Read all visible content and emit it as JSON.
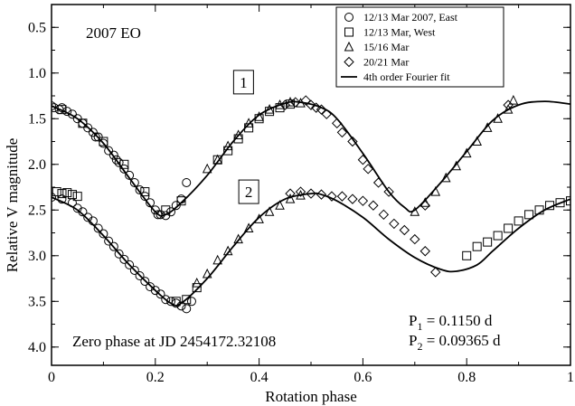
{
  "chart_data": {
    "type": "scatter",
    "title": "2007 EO",
    "xlabel": "Rotation phase",
    "ylabel": "Relative V magnitude",
    "xlim": [
      0,
      1
    ],
    "ylim": [
      4.2,
      0.25
    ],
    "y_inverted": true,
    "x_ticks": [
      0,
      0.2,
      0.4,
      0.6,
      0.8,
      1
    ],
    "x_tick_labels": [
      "0",
      "0.2",
      "0.4",
      "0.6",
      "0.8",
      "1"
    ],
    "y_ticks": [
      0.5,
      1.0,
      1.5,
      2.0,
      2.5,
      3.0,
      3.5,
      4.0
    ],
    "y_tick_labels": [
      "0.5",
      "1.0",
      "1.5",
      "2.0",
      "2.5",
      "3.0",
      "3.5",
      "4.0"
    ],
    "grid": false,
    "legend_position": "top-right",
    "legend": [
      {
        "label": "12/13 Mar 2007, East",
        "marker": "circle"
      },
      {
        "label": "12/13 Mar, West",
        "marker": "square"
      },
      {
        "label": "15/16 Mar",
        "marker": "triangle"
      },
      {
        "label": "20/21 Mar",
        "marker": "diamond"
      },
      {
        "label": "4th order Fourier fit",
        "marker": "line"
      }
    ],
    "panel_labels": [
      {
        "text": "1",
        "x": 0.37,
        "y": 1.1
      },
      {
        "text": "2",
        "x": 0.38,
        "y": 2.3
      }
    ],
    "annotations": {
      "zero_phase": "Zero phase at JD  2454172.32108",
      "p1_sym": "P",
      "p1_sub": "1",
      "p1_val": " = 0.1150 d",
      "p2_sym": "P",
      "p2_sub": "2",
      "p2_val": " = 0.09365 d"
    },
    "series": [
      {
        "label_ref": "1",
        "fit": [
          [
            0,
            1.36
          ],
          [
            0.05,
            1.5
          ],
          [
            0.1,
            1.77
          ],
          [
            0.15,
            2.15
          ],
          [
            0.2,
            2.52
          ],
          [
            0.22,
            2.55
          ],
          [
            0.25,
            2.42
          ],
          [
            0.3,
            2.12
          ],
          [
            0.35,
            1.75
          ],
          [
            0.4,
            1.46
          ],
          [
            0.45,
            1.33
          ],
          [
            0.48,
            1.32
          ],
          [
            0.52,
            1.38
          ],
          [
            0.55,
            1.5
          ],
          [
            0.6,
            1.88
          ],
          [
            0.65,
            2.3
          ],
          [
            0.68,
            2.47
          ],
          [
            0.7,
            2.5
          ],
          [
            0.75,
            2.2
          ],
          [
            0.8,
            1.86
          ],
          [
            0.85,
            1.52
          ],
          [
            0.9,
            1.35
          ],
          [
            0.95,
            1.31
          ],
          [
            1.0,
            1.34
          ]
        ],
        "points": {
          "circle": [
            [
              0.0,
              1.36
            ],
            [
              0.02,
              1.38
            ],
            [
              0.03,
              1.42
            ],
            [
              0.04,
              1.45
            ],
            [
              0.05,
              1.5
            ],
            [
              0.06,
              1.55
            ],
            [
              0.07,
              1.6
            ],
            [
              0.08,
              1.65
            ],
            [
              0.09,
              1.7
            ],
            [
              0.1,
              1.77
            ],
            [
              0.11,
              1.85
            ],
            [
              0.12,
              1.9
            ],
            [
              0.13,
              1.98
            ],
            [
              0.14,
              2.05
            ],
            [
              0.15,
              2.12
            ],
            [
              0.16,
              2.2
            ],
            [
              0.17,
              2.28
            ],
            [
              0.18,
              2.35
            ],
            [
              0.19,
              2.42
            ],
            [
              0.2,
              2.5
            ],
            [
              0.21,
              2.55
            ],
            [
              0.22,
              2.56
            ],
            [
              0.23,
              2.52
            ],
            [
              0.24,
              2.45
            ],
            [
              0.25,
              2.38
            ],
            [
              0.26,
              2.2
            ],
            [
              0.005,
              1.38
            ],
            [
              0.015,
              1.4
            ],
            [
              0.085,
              1.7
            ],
            [
              0.125,
              1.95
            ],
            [
              0.205,
              2.55
            ]
          ],
          "square": [
            [
              0.02,
              1.4
            ],
            [
              0.06,
              1.55
            ],
            [
              0.1,
              1.75
            ],
            [
              0.14,
              2.0
            ],
            [
              0.18,
              2.3
            ],
            [
              0.22,
              2.5
            ],
            [
              0.25,
              2.4
            ],
            [
              0.32,
              1.95
            ],
            [
              0.34,
              1.85
            ],
            [
              0.36,
              1.72
            ],
            [
              0.38,
              1.6
            ],
            [
              0.4,
              1.5
            ],
            [
              0.42,
              1.42
            ],
            [
              0.44,
              1.38
            ],
            [
              0.46,
              1.34
            ]
          ],
          "triangle": [
            [
              0.3,
              2.05
            ],
            [
              0.32,
              1.95
            ],
            [
              0.34,
              1.8
            ],
            [
              0.36,
              1.68
            ],
            [
              0.38,
              1.55
            ],
            [
              0.4,
              1.48
            ],
            [
              0.42,
              1.4
            ],
            [
              0.44,
              1.35
            ],
            [
              0.46,
              1.32
            ],
            [
              0.48,
              1.33
            ],
            [
              0.7,
              2.52
            ],
            [
              0.72,
              2.42
            ],
            [
              0.74,
              2.3
            ],
            [
              0.76,
              2.15
            ],
            [
              0.78,
              2.02
            ],
            [
              0.8,
              1.88
            ],
            [
              0.82,
              1.75
            ],
            [
              0.84,
              1.6
            ],
            [
              0.86,
              1.5
            ],
            [
              0.88,
              1.4
            ],
            [
              0.89,
              1.3
            ]
          ],
          "diamond": [
            [
              0.45,
              1.35
            ],
            [
              0.47,
              1.32
            ],
            [
              0.49,
              1.3
            ],
            [
              0.5,
              1.35
            ],
            [
              0.51,
              1.38
            ],
            [
              0.52,
              1.4
            ],
            [
              0.53,
              1.45
            ],
            [
              0.55,
              1.55
            ],
            [
              0.56,
              1.65
            ],
            [
              0.58,
              1.75
            ],
            [
              0.6,
              1.95
            ],
            [
              0.61,
              2.05
            ],
            [
              0.63,
              2.2
            ],
            [
              0.65,
              2.3
            ],
            [
              0.72,
              2.45
            ],
            [
              0.88,
              1.35
            ]
          ]
        }
      },
      {
        "label_ref": "2",
        "fit": [
          [
            0,
            2.36
          ],
          [
            0.05,
            2.5
          ],
          [
            0.1,
            2.78
          ],
          [
            0.15,
            3.1
          ],
          [
            0.2,
            3.38
          ],
          [
            0.23,
            3.52
          ],
          [
            0.25,
            3.52
          ],
          [
            0.3,
            3.25
          ],
          [
            0.35,
            2.9
          ],
          [
            0.4,
            2.58
          ],
          [
            0.45,
            2.38
          ],
          [
            0.5,
            2.32
          ],
          [
            0.52,
            2.33
          ],
          [
            0.55,
            2.4
          ],
          [
            0.6,
            2.58
          ],
          [
            0.65,
            2.82
          ],
          [
            0.7,
            3.02
          ],
          [
            0.75,
            3.15
          ],
          [
            0.78,
            3.17
          ],
          [
            0.82,
            3.1
          ],
          [
            0.85,
            2.95
          ],
          [
            0.9,
            2.7
          ],
          [
            0.95,
            2.5
          ],
          [
            1.0,
            2.38
          ]
        ],
        "points": {
          "circle": [
            [
              0.0,
              2.36
            ],
            [
              0.02,
              2.38
            ],
            [
              0.04,
              2.42
            ],
            [
              0.05,
              2.48
            ],
            [
              0.06,
              2.52
            ],
            [
              0.07,
              2.58
            ],
            [
              0.08,
              2.62
            ],
            [
              0.09,
              2.7
            ],
            [
              0.1,
              2.76
            ],
            [
              0.11,
              2.84
            ],
            [
              0.12,
              2.9
            ],
            [
              0.13,
              2.98
            ],
            [
              0.14,
              3.04
            ],
            [
              0.15,
              3.1
            ],
            [
              0.16,
              3.16
            ],
            [
              0.17,
              3.22
            ],
            [
              0.18,
              3.28
            ],
            [
              0.19,
              3.34
            ],
            [
              0.2,
              3.38
            ],
            [
              0.21,
              3.42
            ],
            [
              0.22,
              3.48
            ],
            [
              0.23,
              3.5
            ],
            [
              0.24,
              3.52
            ],
            [
              0.25,
              3.55
            ],
            [
              0.26,
              3.58
            ],
            [
              0.27,
              3.5
            ]
          ],
          "square": [
            [
              0.01,
              2.3
            ],
            [
              0.02,
              2.32
            ],
            [
              0.03,
              2.31
            ],
            [
              0.04,
              2.33
            ],
            [
              0.05,
              2.35
            ],
            [
              0.24,
              3.5
            ],
            [
              0.26,
              3.48
            ],
            [
              0.28,
              3.35
            ],
            [
              0.8,
              3.0
            ],
            [
              0.82,
              2.9
            ],
            [
              0.84,
              2.85
            ],
            [
              0.86,
              2.78
            ],
            [
              0.88,
              2.7
            ],
            [
              0.9,
              2.62
            ],
            [
              0.92,
              2.55
            ],
            [
              0.94,
              2.5
            ],
            [
              0.96,
              2.45
            ],
            [
              0.98,
              2.42
            ],
            [
              1.0,
              2.4
            ]
          ],
          "triangle": [
            [
              0.28,
              3.3
            ],
            [
              0.3,
              3.2
            ],
            [
              0.32,
              3.05
            ],
            [
              0.34,
              2.95
            ],
            [
              0.36,
              2.82
            ],
            [
              0.38,
              2.7
            ],
            [
              0.4,
              2.6
            ],
            [
              0.42,
              2.52
            ],
            [
              0.44,
              2.45
            ],
            [
              0.46,
              2.38
            ],
            [
              0.48,
              2.34
            ]
          ],
          "diamond": [
            [
              0.46,
              2.32
            ],
            [
              0.48,
              2.3
            ],
            [
              0.5,
              2.32
            ],
            [
              0.52,
              2.33
            ],
            [
              0.54,
              2.35
            ],
            [
              0.56,
              2.35
            ],
            [
              0.58,
              2.38
            ],
            [
              0.6,
              2.4
            ],
            [
              0.62,
              2.45
            ],
            [
              0.64,
              2.55
            ],
            [
              0.66,
              2.65
            ],
            [
              0.68,
              2.72
            ],
            [
              0.7,
              2.82
            ],
            [
              0.72,
              2.95
            ],
            [
              0.74,
              3.18
            ]
          ]
        }
      }
    ]
  }
}
